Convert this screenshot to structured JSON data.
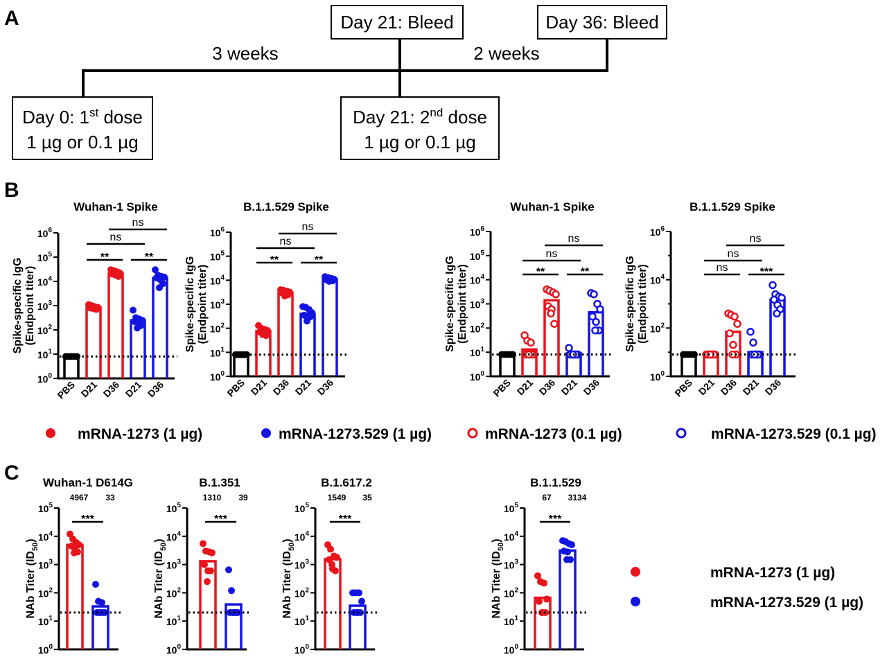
{
  "panel_labels": {
    "a": "A",
    "b": "B",
    "c": "C"
  },
  "colors": {
    "red": "#e8141c",
    "blue": "#1414e0",
    "black": "#000000"
  },
  "timeline": {
    "intervals": [
      "3 weeks",
      "2 weeks"
    ],
    "dose1": {
      "pre": "Day 0: 1",
      "sup": "st",
      "post": " dose",
      "line2": "1 µg or 0.1 µg"
    },
    "dose2": {
      "pre": "Day 21: 2",
      "sup": "nd",
      "post": " dose",
      "line2": "1 µg or 0.1 µg"
    },
    "bleed1": "Day 21: Bleed",
    "bleed2": "Day 36: Bleed"
  },
  "legend_b": [
    {
      "label": "mRNA-1273 (1 µg)",
      "color": "red",
      "marker": "filled"
    },
    {
      "label": "mRNA-1273.529 (1 µg)",
      "color": "blue",
      "marker": "filled"
    },
    {
      "label": "mRNA-1273 (0.1 µg)",
      "color": "red",
      "marker": "open"
    },
    {
      "label": "mRNA-1273.529 (0.1 µg)",
      "color": "blue",
      "marker": "open"
    }
  ],
  "legend_c": [
    {
      "label": "mRNA-1273 (1 µg)",
      "color": "red",
      "marker": "filled"
    },
    {
      "label": "mRNA-1273.529 (1 µg)",
      "color": "blue",
      "marker": "filled"
    }
  ],
  "chart_data": [
    {
      "type": "bar",
      "panel": "B",
      "title": "Wuhan-1 Spike",
      "ylabel": [
        "Spike-specific IgG",
        "(Endpoint titer)"
      ],
      "yscale": "log",
      "ylim": [
        1,
        1000000
      ],
      "ytick_exponents": [
        0,
        1,
        2,
        3,
        4,
        5,
        6
      ],
      "lod": 8,
      "categories": [
        "PBS",
        "D21",
        "D36",
        "D21",
        "D36"
      ],
      "bars": [
        {
          "color": "black",
          "marker": "filled",
          "value": 8,
          "points": [
            8,
            8,
            8,
            8,
            8
          ]
        },
        {
          "color": "red",
          "marker": "filled",
          "value": 850,
          "points": [
            1100,
            1000,
            900,
            850,
            800,
            750,
            700,
            950
          ]
        },
        {
          "color": "red",
          "marker": "filled",
          "value": 21000,
          "points": [
            30000,
            28000,
            25000,
            22000,
            20000,
            18000,
            16000,
            24000
          ]
        },
        {
          "color": "blue",
          "marker": "filled",
          "value": 250,
          "points": [
            650,
            320,
            280,
            250,
            220,
            200,
            150,
            120
          ]
        },
        {
          "color": "blue",
          "marker": "filled",
          "value": 14000,
          "points": [
            30000,
            18000,
            16000,
            15000,
            14000,
            12000,
            8000,
            5500
          ]
        }
      ],
      "comparisons": [
        {
          "a": 1,
          "b": 2,
          "label": "**",
          "level": 0
        },
        {
          "a": 3,
          "b": 4,
          "label": "**",
          "level": 0
        },
        {
          "a": 1,
          "b": 3,
          "label": "ns",
          "level": 1
        },
        {
          "a": 2,
          "b": 4,
          "label": "ns",
          "level": 2
        }
      ]
    },
    {
      "type": "bar",
      "panel": "B",
      "title": "B.1.1.529 Spike",
      "ylabel": [
        "Spike-specific IgG",
        "(Endpoint titer)"
      ],
      "yscale": "log",
      "ylim": [
        1,
        1000000
      ],
      "ytick_exponents": [
        0,
        1,
        2,
        3,
        4,
        5,
        6
      ],
      "lod": 8,
      "categories": [
        "PBS",
        "D21",
        "D36",
        "D21",
        "D36"
      ],
      "bars": [
        {
          "color": "black",
          "marker": "filled",
          "value": 8,
          "points": [
            8,
            8,
            8,
            8,
            8
          ]
        },
        {
          "color": "red",
          "marker": "filled",
          "value": 75,
          "points": [
            130,
            100,
            90,
            80,
            70,
            60,
            50,
            55
          ]
        },
        {
          "color": "red",
          "marker": "filled",
          "value": 3000,
          "points": [
            4000,
            3800,
            3500,
            3200,
            3000,
            2800,
            2500,
            2200
          ]
        },
        {
          "color": "blue",
          "marker": "filled",
          "value": 400,
          "points": [
            800,
            750,
            600,
            450,
            350,
            250,
            300,
            200
          ]
        },
        {
          "color": "blue",
          "marker": "filled",
          "value": 11000,
          "points": [
            14000,
            13000,
            12000,
            11000,
            10500,
            10000,
            9500,
            9000
          ]
        }
      ],
      "comparisons": [
        {
          "a": 1,
          "b": 2,
          "label": "**",
          "level": 0
        },
        {
          "a": 3,
          "b": 4,
          "label": "**",
          "level": 0
        },
        {
          "a": 1,
          "b": 3,
          "label": "ns",
          "level": 1
        },
        {
          "a": 2,
          "b": 4,
          "label": "ns",
          "level": 2
        }
      ]
    },
    {
      "type": "bar",
      "panel": "B",
      "title": "Wuhan-1 Spike",
      "ylabel": [
        "Spike-specific IgG",
        "(Endpoint titer)"
      ],
      "yscale": "log",
      "ylim": [
        1,
        1000000
      ],
      "ytick_exponents": [
        0,
        1,
        2,
        3,
        4,
        5,
        6
      ],
      "lod": 8,
      "categories": [
        "PBS",
        "D21",
        "D36",
        "D21",
        "D36"
      ],
      "bars": [
        {
          "color": "black",
          "marker": "filled",
          "value": 8,
          "points": [
            8,
            8,
            8,
            8,
            8
          ]
        },
        {
          "color": "red",
          "marker": "open",
          "value": 13,
          "points": [
            50,
            30,
            25,
            8,
            8,
            8,
            8,
            8
          ]
        },
        {
          "color": "red",
          "marker": "open",
          "value": 1400,
          "points": [
            4000,
            3500,
            3000,
            2500,
            800,
            600,
            150,
            400
          ]
        },
        {
          "color": "blue",
          "marker": "open",
          "value": 9,
          "points": [
            15,
            8,
            8,
            8,
            8,
            8,
            8,
            8
          ]
        },
        {
          "color": "blue",
          "marker": "open",
          "value": 450,
          "points": [
            2800,
            2500,
            1000,
            600,
            300,
            180,
            80,
            80
          ]
        }
      ],
      "comparisons": [
        {
          "a": 1,
          "b": 2,
          "label": "**",
          "level": 0
        },
        {
          "a": 3,
          "b": 4,
          "label": "**",
          "level": 0
        },
        {
          "a": 1,
          "b": 3,
          "label": "ns",
          "level": 1
        },
        {
          "a": 2,
          "b": 4,
          "label": "ns",
          "level": 2
        }
      ]
    },
    {
      "type": "bar",
      "panel": "B",
      "title": "B.1.1.529 Spike",
      "ylabel": [
        "Spike-specific IgG",
        "(Endpoint titer)"
      ],
      "yscale": "log",
      "ylim": [
        1,
        1000000
      ],
      "ytick_exponents": [
        0,
        2,
        4,
        6
      ],
      "lod": 8,
      "categories": [
        "PBS",
        "D21",
        "D36",
        "D21",
        "D36"
      ],
      "bars": [
        {
          "color": "black",
          "marker": "filled",
          "value": 8,
          "points": [
            8,
            8,
            8,
            8,
            8
          ]
        },
        {
          "color": "red",
          "marker": "open",
          "value": 8,
          "points": [
            8,
            8,
            8,
            8,
            8,
            8,
            8,
            8
          ]
        },
        {
          "color": "red",
          "marker": "open",
          "value": 70,
          "points": [
            400,
            350,
            300,
            150,
            60,
            20,
            8,
            8
          ]
        },
        {
          "color": "blue",
          "marker": "open",
          "value": 10,
          "points": [
            70,
            25,
            8,
            8,
            8,
            8,
            8,
            8
          ]
        },
        {
          "color": "blue",
          "marker": "open",
          "value": 1500,
          "points": [
            6000,
            2500,
            2000,
            1800,
            1500,
            900,
            600,
            400
          ]
        }
      ],
      "comparisons": [
        {
          "a": 1,
          "b": 2,
          "label": "ns",
          "level": 0
        },
        {
          "a": 3,
          "b": 4,
          "label": "***",
          "level": 0
        },
        {
          "a": 1,
          "b": 3,
          "label": "ns",
          "level": 1
        },
        {
          "a": 2,
          "b": 4,
          "label": "ns",
          "level": 2
        }
      ]
    },
    {
      "type": "bar",
      "panel": "C",
      "title": "Wuhan-1 D614G",
      "ylabel": {
        "main": "NAb Titer (ID",
        "sub": "50",
        "end": ")"
      },
      "yscale": "log",
      "ylim": [
        1,
        100000
      ],
      "ytick_exponents": [
        0,
        1,
        2,
        3,
        4,
        5
      ],
      "lod": 20,
      "bars": [
        {
          "color": "red",
          "marker": "filled",
          "value": 4967,
          "label": "4967",
          "points": [
            12000,
            8000,
            6000,
            5000,
            4500,
            4000,
            2800,
            2600
          ]
        },
        {
          "color": "blue",
          "marker": "filled",
          "value": 33,
          "label": "33",
          "points": [
            200,
            50,
            45,
            20,
            20,
            20,
            20,
            20
          ]
        }
      ],
      "comparisons": [
        {
          "a": 0,
          "b": 1,
          "label": "***",
          "level": 0
        }
      ]
    },
    {
      "type": "bar",
      "panel": "C",
      "title": "B.1.351",
      "ylabel": {
        "main": "NAb Titer (ID",
        "sub": "50",
        "end": ")"
      },
      "yscale": "log",
      "ylim": [
        1,
        100000
      ],
      "ytick_exponents": [
        0,
        1,
        2,
        3,
        4,
        5
      ],
      "lod": 20,
      "bars": [
        {
          "color": "red",
          "marker": "filled",
          "value": 1310,
          "label": "1310",
          "points": [
            5500,
            3000,
            2800,
            2600,
            1000,
            600,
            600,
            250
          ]
        },
        {
          "color": "blue",
          "marker": "filled",
          "value": 39,
          "label": "39",
          "points": [
            650,
            120,
            20,
            20,
            20,
            20,
            20,
            20
          ]
        }
      ],
      "comparisons": [
        {
          "a": 0,
          "b": 1,
          "label": "***",
          "level": 0
        }
      ]
    },
    {
      "type": "bar",
      "panel": "C",
      "title": "B.1.617.2",
      "ylabel": {
        "main": "NAb Titer (ID",
        "sub": "50",
        "end": ")"
      },
      "yscale": "log",
      "ylim": [
        1,
        100000
      ],
      "ytick_exponents": [
        0,
        1,
        2,
        3,
        4,
        5
      ],
      "lod": 20,
      "bars": [
        {
          "color": "red",
          "marker": "filled",
          "value": 1549,
          "label": "1549",
          "points": [
            5000,
            3500,
            2000,
            1800,
            1500,
            700,
            600,
            1000
          ]
        },
        {
          "color": "blue",
          "marker": "filled",
          "value": 35,
          "label": "35",
          "points": [
            100,
            100,
            100,
            50,
            20,
            20,
            20,
            20
          ]
        }
      ],
      "comparisons": [
        {
          "a": 0,
          "b": 1,
          "label": "***",
          "level": 0
        }
      ]
    },
    {
      "type": "bar",
      "panel": "C",
      "title": "B.1.1.529",
      "ylabel": {
        "main": "NAb Titer (ID",
        "sub": "50",
        "end": ")"
      },
      "yscale": "log",
      "ylim": [
        1,
        100000
      ],
      "ytick_exponents": [
        0,
        1,
        2,
        3,
        4,
        5
      ],
      "lod": 20,
      "bars": [
        {
          "color": "red",
          "marker": "filled",
          "value": 67,
          "label": "67",
          "points": [
            400,
            250,
            220,
            60,
            50,
            20,
            20,
            20
          ]
        },
        {
          "color": "blue",
          "marker": "filled",
          "value": 3134,
          "label": "3134",
          "points": [
            7000,
            6500,
            5500,
            5000,
            3000,
            2800,
            1500,
            1500
          ]
        }
      ],
      "comparisons": [
        {
          "a": 0,
          "b": 1,
          "label": "***",
          "level": 0
        }
      ]
    }
  ]
}
